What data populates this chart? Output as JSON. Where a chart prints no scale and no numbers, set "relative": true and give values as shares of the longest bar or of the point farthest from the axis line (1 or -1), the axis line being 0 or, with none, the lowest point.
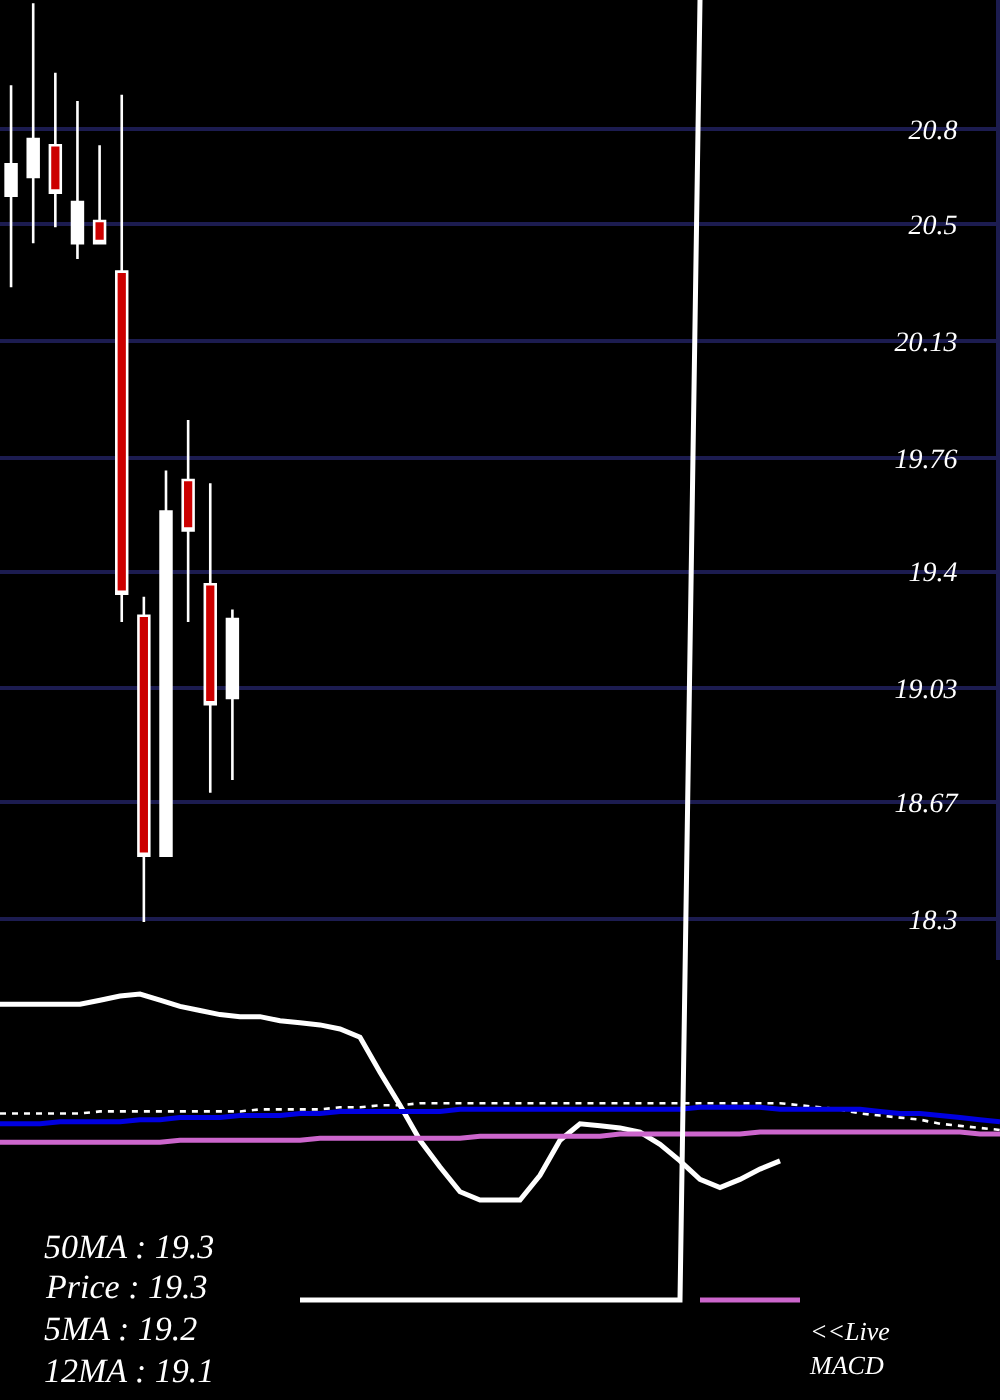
{
  "chart_data": [
    {
      "type": "candlestick",
      "categories": [
        null,
        null,
        null,
        null,
        null,
        null,
        null,
        null,
        null,
        null,
        null,
        null,
        null,
        null,
        null,
        null,
        null,
        null,
        null,
        null,
        null,
        null,
        null,
        null,
        null,
        null,
        null,
        null,
        null,
        null,
        null,
        null,
        null,
        null,
        null,
        null,
        null,
        null,
        null,
        null,
        null,
        null,
        null,
        null,
        null
      ],
      "ohlc": [
        [
          20.59,
          20.94,
          20.3,
          20.69
        ],
        [
          20.65,
          21.2,
          20.44,
          20.77
        ],
        [
          20.75,
          20.98,
          20.49,
          20.6
        ],
        [
          20.44,
          20.89,
          20.39,
          20.57
        ],
        [
          20.51,
          20.75,
          20.44,
          20.44
        ],
        [
          20.35,
          20.91,
          19.24,
          19.33
        ],
        [
          19.26,
          19.32,
          18.29,
          18.5
        ],
        [
          18.5,
          19.72,
          18.5,
          19.59
        ],
        [
          19.69,
          19.88,
          19.24,
          19.53
        ],
        [
          19.36,
          19.68,
          18.7,
          18.98
        ],
        [
          19.0,
          19.28,
          18.74,
          19.25
        ],
        null,
        null,
        null,
        null,
        null,
        null,
        null,
        null,
        null,
        null,
        null,
        null,
        null,
        null,
        null,
        null,
        null,
        null,
        null,
        null,
        null,
        null,
        null,
        null,
        null,
        null,
        null,
        null,
        null,
        null,
        null,
        null,
        null,
        null
      ],
      "colors": [
        "#ffffff",
        "#ffffff",
        "#cc0000",
        "#ffffff",
        "#cc0000",
        "#cc0000",
        "#cc0000",
        "#ffffff",
        "#cc0000",
        "#cc0000",
        "#ffffff",
        null,
        null,
        null,
        null,
        null,
        null,
        null,
        null,
        null,
        null,
        null,
        null,
        null,
        null,
        null,
        null,
        null,
        null,
        null,
        null,
        null,
        null,
        null,
        null,
        null,
        null,
        null,
        null,
        null,
        null,
        null,
        null,
        null,
        null
      ],
      "ylim": [
        18.17,
        21.21
      ],
      "yticks": [
        18.3,
        18.67,
        19.03,
        19.4,
        19.76,
        20.13,
        20.5,
        20.8
      ],
      "grid": "y",
      "tick_labels": "y"
    },
    {
      "type": "line",
      "relative": true,
      "categories": [
        null,
        null,
        null,
        null,
        null,
        null,
        null,
        null,
        null,
        null,
        null,
        null,
        null,
        null,
        null,
        null,
        null,
        null,
        null,
        null,
        null,
        null,
        null,
        null,
        null,
        null,
        null,
        null,
        null,
        null,
        null,
        null,
        null,
        null,
        null,
        null,
        null,
        null,
        null,
        null,
        null,
        null,
        null,
        null,
        null,
        null,
        null,
        null,
        null,
        null,
        null
      ],
      "line_style": "solid",
      "series": [
        {
          "color": "#ffffff",
          "values": [
            0.95,
            0.95,
            0.95,
            0.95,
            0.95,
            0.97,
            0.99,
            1,
            0.97,
            0.94,
            0.92,
            0.9,
            0.89,
            0.89,
            0.87,
            0.86,
            0.85,
            0.83,
            0.79,
            0.62,
            0.46,
            0.29,
            0.16,
            0.04,
            0,
            0,
            0,
            0.12,
            0.29,
            0.37,
            0.36,
            0.35,
            0.33,
            0.27,
            0.19,
            0.1,
            0.06,
            0.1,
            0.15,
            0.19,
            null,
            null,
            null,
            null,
            null,
            null,
            null,
            null,
            null,
            null,
            null
          ]
        },
        {
          "color": "#ffffff",
          "line_style": "dotted",
          "values": [
            0.42,
            0.42,
            0.42,
            0.42,
            0.42,
            0.43,
            0.43,
            0.43,
            0.43,
            0.43,
            0.43,
            0.43,
            0.43,
            0.44,
            0.44,
            0.44,
            0.44,
            0.45,
            0.45,
            0.46,
            0.46,
            0.47,
            0.47,
            0.47,
            0.47,
            0.47,
            0.47,
            0.47,
            0.47,
            0.47,
            0.47,
            0.47,
            0.47,
            0.47,
            0.47,
            0.47,
            0.47,
            0.47,
            0.47,
            0.47,
            0.46,
            0.45,
            0.44,
            0.42,
            0.41,
            0.4,
            0.39,
            0.37,
            0.36,
            0.35,
            0.34
          ]
        },
        {
          "color": "#0000e0",
          "values": [
            0.37,
            0.37,
            0.37,
            0.38,
            0.38,
            0.38,
            0.38,
            0.39,
            0.39,
            0.4,
            0.4,
            0.4,
            0.41,
            0.41,
            0.41,
            0.42,
            0.42,
            0.43,
            0.43,
            0.43,
            0.43,
            0.43,
            0.43,
            0.44,
            0.44,
            0.44,
            0.44,
            0.44,
            0.44,
            0.44,
            0.44,
            0.44,
            0.44,
            0.44,
            0.44,
            0.45,
            0.45,
            0.45,
            0.45,
            0.44,
            0.44,
            0.44,
            0.44,
            0.44,
            0.43,
            0.42,
            0.42,
            0.41,
            0.4,
            0.39,
            0.38
          ]
        },
        {
          "color": "#cc66cc",
          "values": [
            0.28,
            0.28,
            0.28,
            0.28,
            0.28,
            0.28,
            0.28,
            0.28,
            0.28,
            0.29,
            0.29,
            0.29,
            0.29,
            0.29,
            0.29,
            0.29,
            0.3,
            0.3,
            0.3,
            0.3,
            0.3,
            0.3,
            0.3,
            0.3,
            0.31,
            0.31,
            0.31,
            0.31,
            0.31,
            0.31,
            0.31,
            0.32,
            0.32,
            0.32,
            0.32,
            0.32,
            0.32,
            0.32,
            0.33,
            0.33,
            0.33,
            0.33,
            0.33,
            0.33,
            0.33,
            0.33,
            0.33,
            0.33,
            0.33,
            0.32,
            0.32
          ]
        }
      ],
      "annotations": [
        "50MA : 19.3",
        "Price : 19.3",
        "5MA : 19.2",
        "12MA : 19.1"
      ]
    },
    {
      "type": "line",
      "relative": true,
      "categories": [
        null,
        null,
        null,
        null,
        null,
        null,
        null,
        null,
        null,
        null,
        null,
        null,
        null,
        null,
        null,
        null,
        null,
        null,
        null,
        null,
        null,
        null,
        null,
        null,
        null,
        null
      ],
      "series": [
        {
          "color": "#ffffff",
          "values": [
            0,
            0,
            0,
            0,
            0,
            0,
            0,
            0,
            0,
            0,
            0,
            0,
            0,
            0,
            0,
            0,
            0,
            0,
            0,
            0,
            1,
            null,
            null,
            null,
            null,
            null
          ]
        },
        {
          "color": "#cc66cc",
          "values": [
            null,
            null,
            null,
            null,
            null,
            null,
            null,
            null,
            null,
            null,
            null,
            null,
            null,
            null,
            null,
            null,
            null,
            null,
            null,
            null,
            0,
            0,
            0,
            0,
            0,
            0
          ]
        }
      ],
      "annotations": [
        "<<Live MACD"
      ]
    }
  ]
}
